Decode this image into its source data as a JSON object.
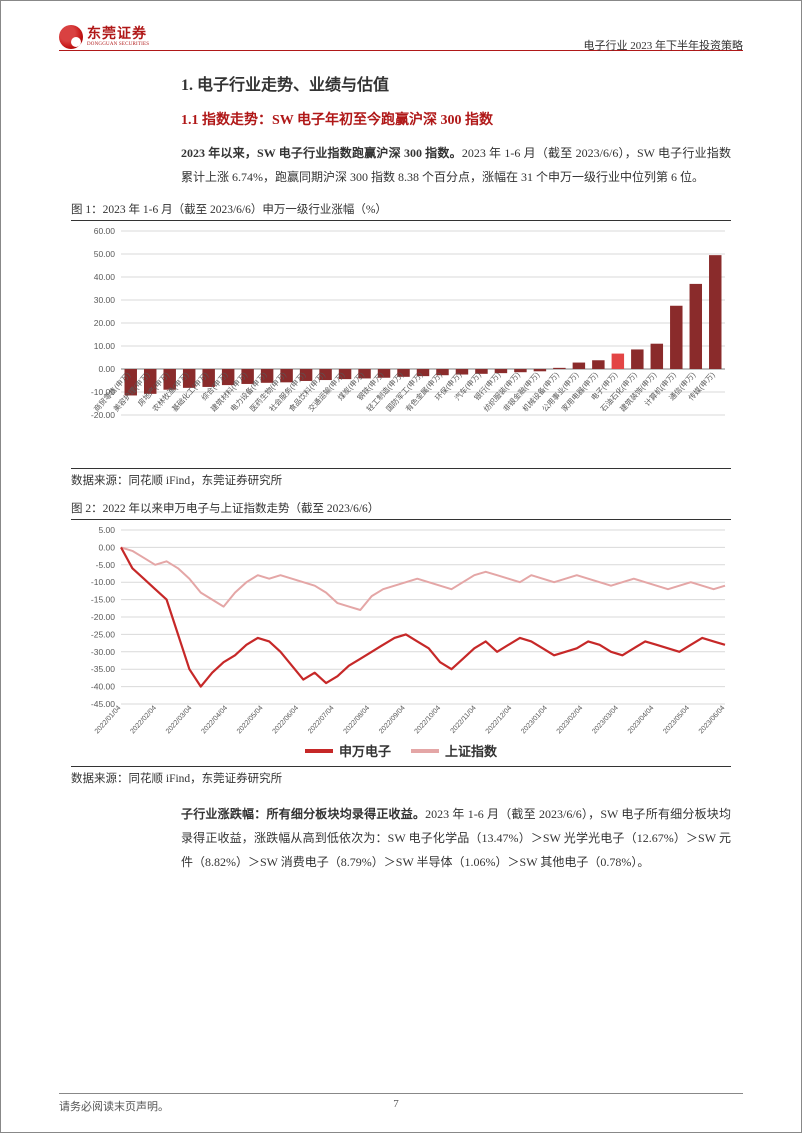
{
  "header": {
    "company_cn": "东莞证券",
    "company_en": "DONGGUAN SECURITIES",
    "right_text": "电子行业 2023 年下半年投资策略"
  },
  "section": {
    "h1": "1. 电子行业走势、业绩与估值",
    "h2": "1.1 指数走势：SW 电子年初至今跑赢沪深 300 指数",
    "p1_bold": "2023 年以来，SW 电子行业指数跑赢沪深 300 指数。",
    "p1_rest": "2023 年 1-6 月（截至 2023/6/6），SW 电子行业指数累计上涨 6.74%，跑赢同期沪深 300 指数 8.38 个百分点，涨幅在 31 个申万一级行业中位列第 6 位。"
  },
  "fig1": {
    "title": "图 1：2023 年 1-6 月（截至 2023/6/6）申万一级行业涨幅（%）",
    "source": "数据来源：同花顺 iFind，东莞证券研究所",
    "type": "bar",
    "y_ticks": [
      -20,
      -10,
      0,
      10,
      20,
      30,
      40,
      50,
      60
    ],
    "y_tick_labels": [
      "-20.00",
      "-10.00",
      "0.00",
      "10.00",
      "20.00",
      "30.00",
      "40.00",
      "50.00",
      "60.00"
    ],
    "ylim": [
      -20,
      60
    ],
    "categories": [
      "商贸零售(申万)",
      "美容护理(申万)",
      "房地产(申万)",
      "农林牧渔(申万)",
      "基础化工(申万)",
      "综合(申万)",
      "建筑材料(申万)",
      "电力设备(申万)",
      "医药生物(申万)",
      "社会服务(申万)",
      "食品饮料(申万)",
      "交通运输(申万)",
      "煤炭(申万)",
      "钢铁(申万)",
      "轻工制造(申万)",
      "国防军工(申万)",
      "有色金属(申万)",
      "环保(申万)",
      "汽车(申万)",
      "银行(申万)",
      "纺织服装(申万)",
      "非银金融(申万)",
      "机械设备(申万)",
      "公用事业(申万)",
      "家用电器(申万)",
      "电子(申万)",
      "石油石化(申万)",
      "建筑装饰(申万)",
      "计算机(申万)",
      "通信(申万)",
      "传媒(申万)"
    ],
    "values": [
      -11.5,
      -10.8,
      -9.0,
      -8.2,
      -7.8,
      -7.0,
      -6.5,
      -6.0,
      -5.8,
      -5.2,
      -4.8,
      -4.4,
      -4.1,
      -3.8,
      -3.4,
      -3.1,
      -2.7,
      -2.4,
      -2.1,
      -1.8,
      -1.4,
      -1.0,
      0.5,
      2.8,
      3.8,
      6.7,
      8.5,
      11.0,
      27.5,
      37.0,
      49.5
    ],
    "highlight_index": 25,
    "bar_color": "#8a2b2b",
    "highlight_color": "#e34545",
    "grid_color": "#d9d9d9",
    "axis_color": "#808080",
    "text_color": "#595959",
    "fontsize_axis": 8.5,
    "fontsize_cat": 7.5,
    "background_color": "#ffffff"
  },
  "fig2": {
    "title": "图 2：2022 年以来申万电子与上证指数走势（截至 2023/6/6）",
    "source": "数据来源：同花顺 iFind，东莞证券研究所",
    "type": "line",
    "y_ticks": [
      -45,
      -40,
      -35,
      -30,
      -25,
      -20,
      -15,
      -10,
      -5,
      0,
      5
    ],
    "y_tick_labels": [
      "-45.00",
      "-40.00",
      "-35.00",
      "-30.00",
      "-25.00",
      "-20.00",
      "-15.00",
      "-10.00",
      "-5.00",
      "0.00",
      "5.00"
    ],
    "ylim": [
      -45,
      5
    ],
    "x_labels": [
      "2022/01/04",
      "2022/02/04",
      "2022/03/04",
      "2022/04/04",
      "2022/05/04",
      "2022/06/04",
      "2022/07/04",
      "2022/08/04",
      "2022/09/04",
      "2022/10/04",
      "2022/11/04",
      "2022/12/04",
      "2023/01/04",
      "2023/02/04",
      "2023/03/04",
      "2023/04/04",
      "2023/05/04",
      "2023/06/04"
    ],
    "series": [
      {
        "name": "申万电子",
        "color": "#c62828",
        "width": 2.2,
        "points": [
          0,
          -6,
          -9,
          -12,
          -15,
          -25,
          -35,
          -40,
          -36,
          -33,
          -31,
          -28,
          -26,
          -27,
          -30,
          -34,
          -38,
          -36,
          -39,
          -37,
          -34,
          -32,
          -30,
          -28,
          -26,
          -25,
          -27,
          -29,
          -33,
          -35,
          -32,
          -29,
          -27,
          -30,
          -28,
          -26,
          -27,
          -29,
          -31,
          -30,
          -29,
          -27,
          -28,
          -30,
          -31,
          -29,
          -27,
          -28,
          -29,
          -30,
          -28,
          -26,
          -27,
          -28
        ]
      },
      {
        "name": "上证指数",
        "color": "#e4a6a6",
        "width": 2.0,
        "points": [
          0,
          -1,
          -3,
          -5,
          -4,
          -6,
          -9,
          -13,
          -15,
          -17,
          -13,
          -10,
          -8,
          -9,
          -8,
          -9,
          -10,
          -11,
          -13,
          -16,
          -17,
          -18,
          -14,
          -12,
          -11,
          -10,
          -9,
          -10,
          -11,
          -12,
          -10,
          -8,
          -7,
          -8,
          -9,
          -10,
          -8,
          -9,
          -10,
          -9,
          -8,
          -9,
          -10,
          -11,
          -10,
          -9,
          -10,
          -11,
          -12,
          -11,
          -10,
          -11,
          -12,
          -11
        ]
      }
    ],
    "legend": [
      "申万电子",
      "上证指数"
    ],
    "grid_color": "#d9d9d9",
    "axis_color": "#808080",
    "text_color": "#595959",
    "fontsize_axis": 8.5,
    "fontsize_cat": 7,
    "background_color": "#ffffff"
  },
  "section2": {
    "p2_bold": "子行业涨跌幅：所有细分板块均录得正收益。",
    "p2_rest": "2023 年 1-6 月（截至 2023/6/6），SW 电子所有细分板块均录得正收益，涨跌幅从高到低依次为：SW 电子化学品（13.47%）＞SW 光学光电子（12.67%）＞SW 元件（8.82%）＞SW 消费电子（8.79%）＞SW 半导体（1.06%）＞SW 其他电子（0.78%）。"
  },
  "footer": {
    "left": "请务必阅读末页声明。",
    "page": "7"
  }
}
